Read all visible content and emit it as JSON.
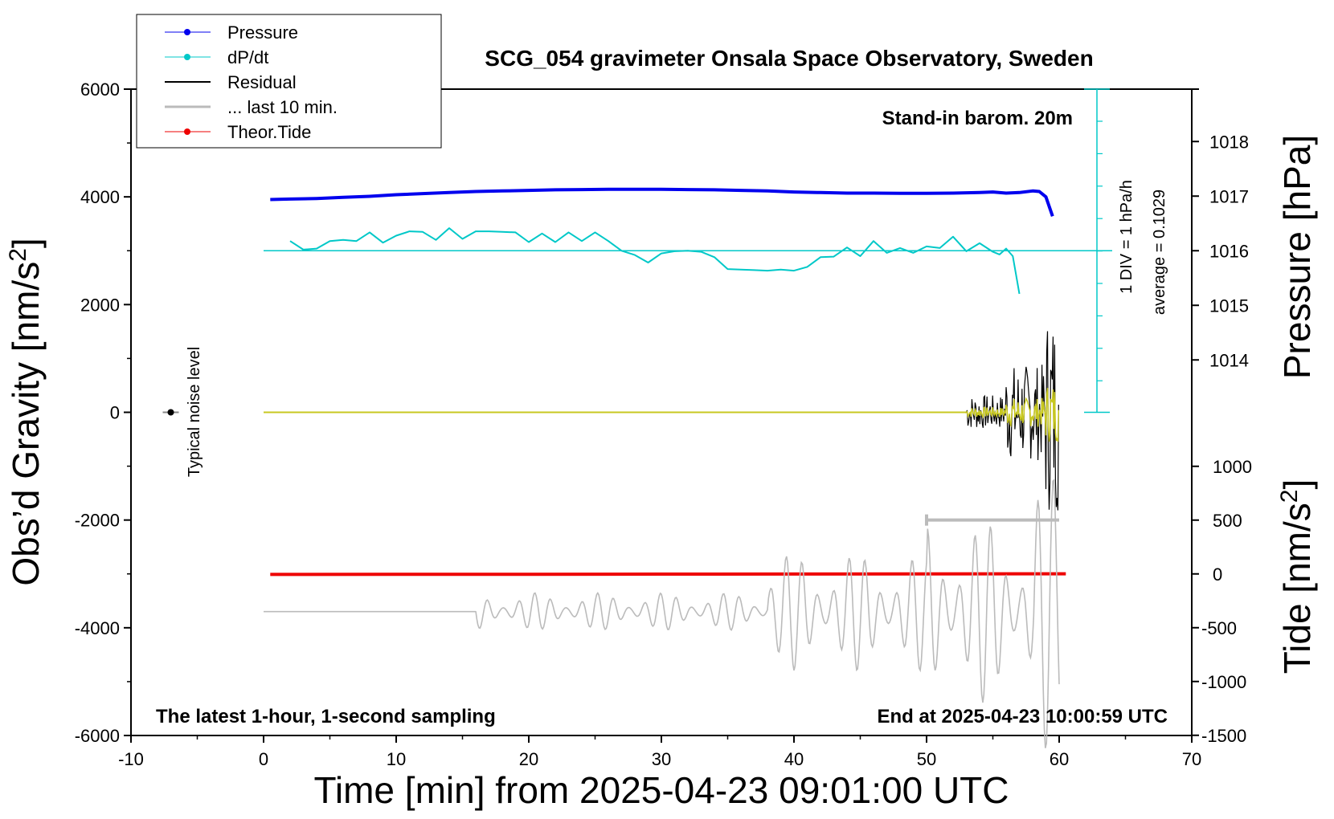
{
  "chart_data": {
    "type": "line",
    "title": "SCG_054 gravimeter Onsala Space Observatory, Sweden",
    "xlabel": "Time [min] from 2025-04-23 09:01:00 UTC",
    "ylabel": "Obs'd Gravity [nm/s²]",
    "ylabel_main": "Obs’d Gravity [nm/s",
    "ylabel_sup": "2",
    "ylabel_end": "]",
    "y2label": "Pressure [hPa]",
    "y3label_main": "Tide [nm/s",
    "y3label_sup": "2",
    "y3label_end": "]",
    "xlim": [
      -10,
      70
    ],
    "ylim": [
      -6000,
      6000
    ],
    "x_ticks": [
      "-10",
      "0",
      "10",
      "20",
      "30",
      "40",
      "50",
      "60",
      "70"
    ],
    "y_ticks": [
      "-6000",
      "-4000",
      "-2000",
      "0",
      "2000",
      "4000",
      "6000"
    ],
    "pressure_ticks": [
      {
        "label": "1014",
        "value": 1014
      },
      {
        "label": "1015",
        "value": 1015
      },
      {
        "label": "1016",
        "value": 1016
      },
      {
        "label": "1017",
        "value": 1017
      },
      {
        "label": "1018",
        "value": 1018
      }
    ],
    "tide_ticks": [
      {
        "label": "-1500",
        "value": -1500
      },
      {
        "label": "-1000",
        "value": -1000
      },
      {
        "label": "-500",
        "value": -500
      },
      {
        "label": "0",
        "value": 0
      },
      {
        "label": "500",
        "value": 500
      },
      {
        "label": "1000",
        "value": 1000
      }
    ],
    "legend": [
      {
        "name": "Pressure",
        "color": "#0000ee",
        "marker": true
      },
      {
        "name": "dP/dt",
        "color": "#00c8c8",
        "marker": true
      },
      {
        "name": "Residual",
        "color": "#000000",
        "marker": false
      },
      {
        "name": "... last 10 min.",
        "color": "#bbbbbb",
        "marker": false
      },
      {
        "name": "Theor.Tide",
        "color": "#ee0000",
        "marker": true
      }
    ],
    "annotations": {
      "stand_in": "Stand-in barom. 20m",
      "div_note": "1 DIV = 1 hPa/h",
      "average_note": "average = 0.1029",
      "noise_label": "Typical noise level",
      "latest": "The latest 1-hour, 1-second sampling",
      "end_at": "End at 2025-04-23 10:00:59 UTC"
    },
    "noise_point": {
      "x": -7,
      "y": 0
    },
    "scale_bar": {
      "x0": 50,
      "x1": 60,
      "y": -2000
    },
    "series": [
      {
        "name": "Pressure",
        "color": "#0000ee",
        "x": [
          0.5,
          2,
          4,
          6,
          8,
          10,
          12,
          14,
          16,
          18,
          20,
          22,
          24,
          26,
          28,
          30,
          32,
          34,
          36,
          38,
          40,
          42,
          44,
          46,
          48,
          50,
          52,
          54,
          55,
          56,
          57,
          58,
          58.5,
          59,
          59.5
        ],
        "y": [
          3950,
          3960,
          3970,
          3990,
          4010,
          4040,
          4060,
          4080,
          4100,
          4110,
          4120,
          4130,
          4135,
          4140,
          4140,
          4140,
          4135,
          4130,
          4120,
          4110,
          4090,
          4080,
          4070,
          4070,
          4065,
          4065,
          4070,
          4080,
          4090,
          4070,
          4080,
          4110,
          4100,
          4000,
          3640
        ]
      },
      {
        "name": "dP/dt",
        "color": "#00c8c8",
        "x": [
          2,
          3,
          4,
          5,
          6,
          7,
          8,
          9,
          10,
          11,
          12,
          13,
          14,
          15,
          16,
          17,
          18,
          19,
          20,
          21,
          22,
          23,
          24,
          25,
          26,
          27,
          28,
          29,
          30,
          31,
          32,
          33,
          34,
          35,
          36,
          37,
          38,
          39,
          40,
          41,
          42,
          43,
          44,
          45,
          46,
          47,
          48,
          49,
          50,
          51,
          52,
          53,
          54,
          55,
          55.5,
          56,
          56.5,
          57
        ],
        "y": [
          3180,
          3020,
          3040,
          3180,
          3200,
          3180,
          3340,
          3150,
          3280,
          3360,
          3350,
          3200,
          3420,
          3220,
          3360,
          3360,
          3350,
          3340,
          3160,
          3320,
          3160,
          3340,
          3180,
          3340,
          3180,
          3000,
          2920,
          2780,
          2950,
          2990,
          3000,
          2980,
          2880,
          2660,
          2650,
          2640,
          2630,
          2650,
          2630,
          2700,
          2880,
          2890,
          3060,
          2900,
          3180,
          2960,
          3050,
          2960,
          3080,
          3050,
          3260,
          2990,
          3140,
          2980,
          2930,
          3040,
          2900,
          2200
        ]
      },
      {
        "name": "Theor.Tide",
        "color": "#ee0000",
        "x": [
          0.5,
          10,
          20,
          30,
          40,
          50,
          60.5
        ],
        "y": [
          -3010,
          -3008,
          -3006,
          -3004,
          -3002,
          -3000,
          -2998
        ]
      }
    ],
    "dpdt_zero": 3000,
    "residual_start": 0,
    "residual_end": 60,
    "noisy_start": 53
  }
}
